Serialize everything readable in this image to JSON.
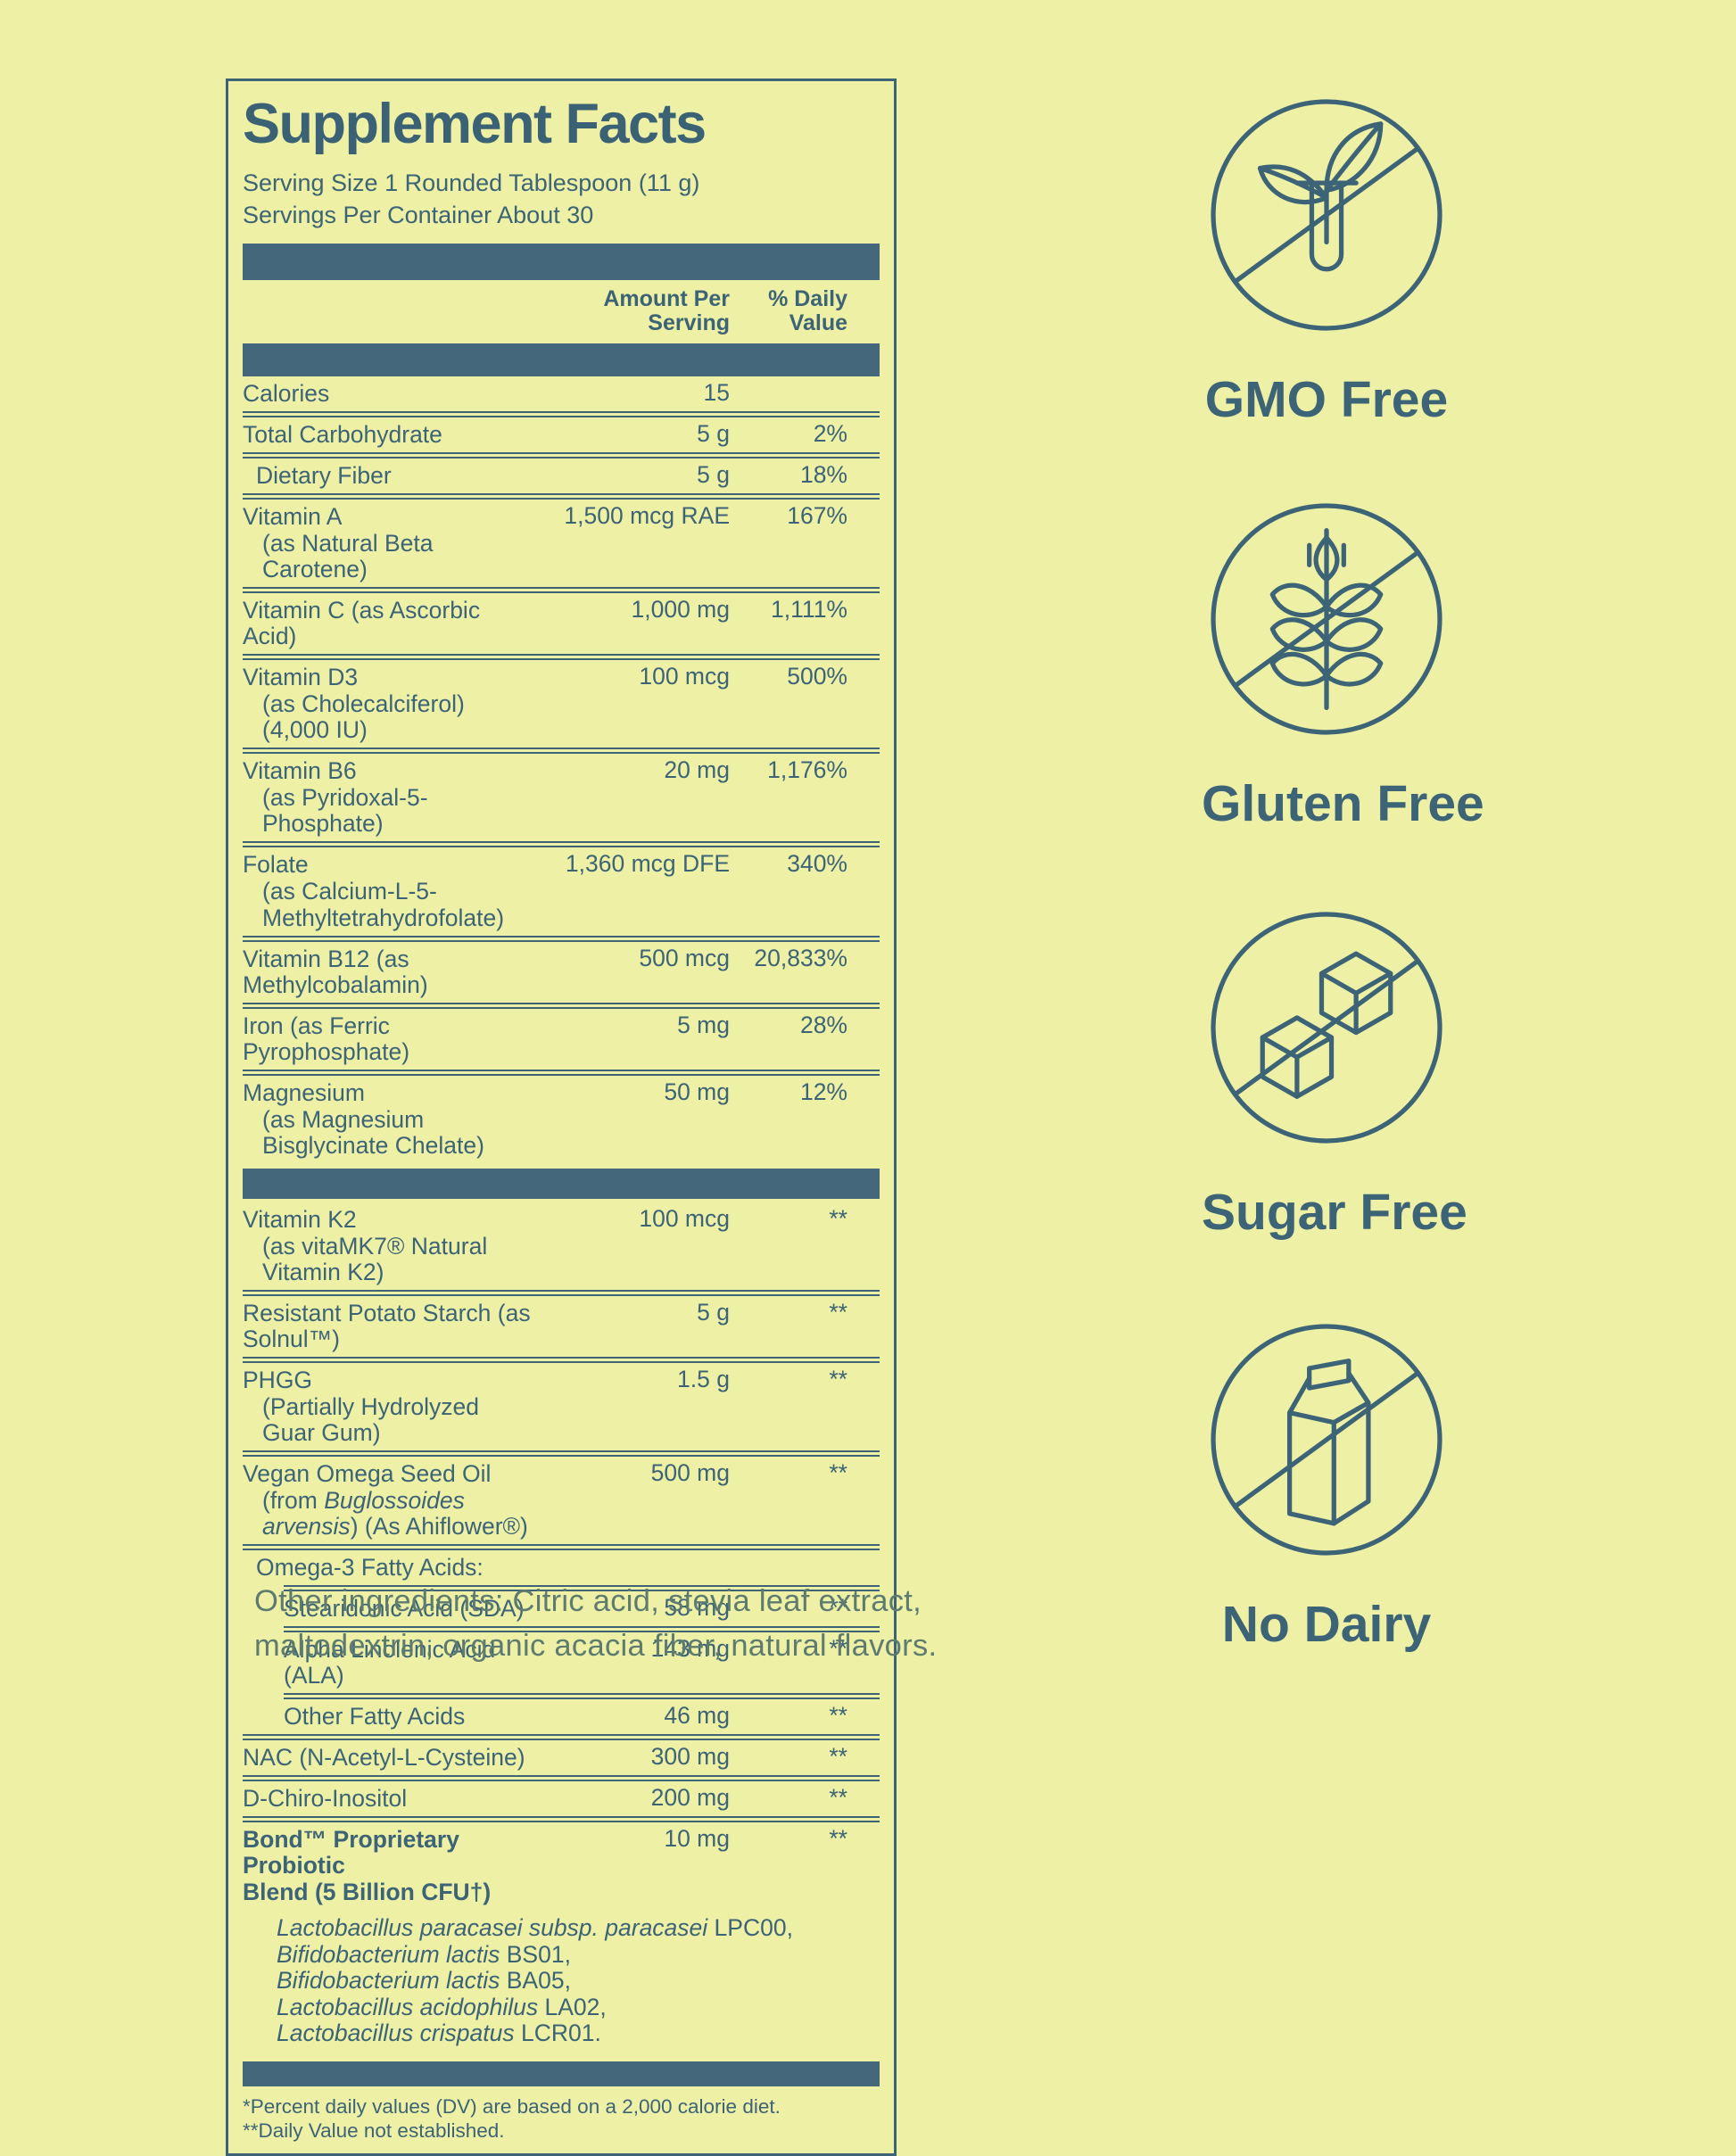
{
  "colors": {
    "background": "#edf0a5",
    "ink": "#3d6376",
    "bar": "#44677c",
    "muted_ink": "#5f7b70"
  },
  "panel": {
    "title": "Supplement Facts",
    "serving_size": "Serving Size 1 Rounded Tablespoon (11 g)",
    "servings_per_container": "Servings Per Container About 30",
    "columns": {
      "amount": [
        "Amount Per",
        "Serving"
      ],
      "dv": [
        "% Daily",
        "Value"
      ]
    },
    "rows": [
      {
        "lines": [
          {
            "seg": [
              {
                "t": "Calories"
              }
            ]
          }
        ],
        "a": "15",
        "dv": "",
        "sep": "d"
      },
      {
        "lines": [
          {
            "seg": [
              {
                "t": "Total Carbohydrate"
              }
            ]
          }
        ],
        "a": "5 g",
        "dv": "2%",
        "sep": "d"
      },
      {
        "lines": [
          {
            "seg": [
              {
                "t": "Dietary Fiber"
              }
            ]
          }
        ],
        "a": "5 g",
        "dv": "18%",
        "ind": 1,
        "sep": "d"
      },
      {
        "lines": [
          {
            "seg": [
              {
                "t": "Vitamin A"
              }
            ]
          },
          {
            "seg": [
              {
                "t": "(as Natural Beta Carotene)"
              }
            ],
            "sub": true
          }
        ],
        "a": "1,500 mcg RAE",
        "dv": "167%",
        "sep": "d"
      },
      {
        "lines": [
          {
            "seg": [
              {
                "t": "Vitamin C (as Ascorbic Acid)"
              }
            ]
          }
        ],
        "a": "1,000 mg",
        "dv": "1,111%",
        "sep": "d"
      },
      {
        "lines": [
          {
            "seg": [
              {
                "t": "Vitamin D3"
              }
            ]
          },
          {
            "seg": [
              {
                "t": "(as Cholecalciferol) (4,000 IU)"
              }
            ],
            "sub": true
          }
        ],
        "a": "100 mcg",
        "dv": "500%",
        "sep": "d"
      },
      {
        "lines": [
          {
            "seg": [
              {
                "t": "Vitamin B6"
              }
            ]
          },
          {
            "seg": [
              {
                "t": "(as Pyridoxal-5-Phosphate)"
              }
            ],
            "sub": true
          }
        ],
        "a": "20 mg",
        "dv": "1,176%",
        "sep": "d"
      },
      {
        "lines": [
          {
            "seg": [
              {
                "t": "Folate"
              }
            ]
          },
          {
            "seg": [
              {
                "t": "(as Calcium-L-5-"
              }
            ],
            "sub": true
          },
          {
            "seg": [
              {
                "t": "Methyltetrahydrofolate)"
              }
            ],
            "sub": true
          }
        ],
        "a": "1,360 mcg DFE",
        "dv": "340%",
        "sep": "d"
      },
      {
        "lines": [
          {
            "seg": [
              {
                "t": "Vitamin B12 (as Methylcobalamin)"
              }
            ]
          }
        ],
        "a": "500 mcg",
        "dv": "20,833%",
        "sep": "d"
      },
      {
        "lines": [
          {
            "seg": [
              {
                "t": "Iron (as Ferric Pyrophosphate)"
              }
            ]
          }
        ],
        "a": "5 mg",
        "dv": "28%",
        "sep": "d"
      },
      {
        "lines": [
          {
            "seg": [
              {
                "t": "Magnesium"
              }
            ]
          },
          {
            "seg": [
              {
                "t": "(as Magnesium Bisglycinate Chelate)"
              }
            ],
            "sub": true
          }
        ],
        "a": "50 mg",
        "dv": "12%",
        "sep": "n",
        "bar": true
      },
      {
        "lines": [
          {
            "seg": [
              {
                "t": "Vitamin K2"
              }
            ]
          },
          {
            "seg": [
              {
                "t": "(as vitaMK7® Natural Vitamin K2)"
              }
            ],
            "sub": true
          }
        ],
        "a": "100 mcg",
        "dv": "**",
        "sep": "d"
      },
      {
        "lines": [
          {
            "seg": [
              {
                "t": "Resistant Potato Starch (as Solnul™)"
              }
            ]
          }
        ],
        "a": "5 g",
        "dv": "**",
        "sep": "d"
      },
      {
        "lines": [
          {
            "seg": [
              {
                "t": "PHGG"
              }
            ]
          },
          {
            "seg": [
              {
                "t": "(Partially Hydrolyzed Guar Gum)"
              }
            ],
            "sub": true
          }
        ],
        "a": "1.5 g",
        "dv": "**",
        "sep": "d"
      },
      {
        "lines": [
          {
            "seg": [
              {
                "t": "Vegan Omega Seed Oil"
              }
            ]
          },
          {
            "seg": [
              {
                "t": "(from "
              },
              {
                "t": "Buglossoides arvensis",
                "i": true
              },
              {
                "t": ") (As Ahiflower®)"
              }
            ],
            "sub": true
          }
        ],
        "a": "500 mg",
        "dv": "**",
        "sep": "d"
      },
      {
        "lines": [
          {
            "seg": [
              {
                "t": "Omega-3 Fatty Acids:"
              }
            ]
          }
        ],
        "a": "",
        "dv": "",
        "ind": 1,
        "sep": "di"
      },
      {
        "lines": [
          {
            "seg": [
              {
                "t": "Stearidonic Acid (SDA)"
              }
            ]
          }
        ],
        "a": "58 mg",
        "dv": "**",
        "ind": 2,
        "sep": "di"
      },
      {
        "lines": [
          {
            "seg": [
              {
                "t": "Alpha Linolenic Acid (ALA)"
              }
            ]
          }
        ],
        "a": "143 mg",
        "dv": "**",
        "ind": 2,
        "sep": "di"
      },
      {
        "lines": [
          {
            "seg": [
              {
                "t": "Other Fatty Acids"
              }
            ]
          }
        ],
        "a": "46 mg",
        "dv": "**",
        "ind": 2,
        "sep": "d"
      },
      {
        "lines": [
          {
            "seg": [
              {
                "t": "NAC (N-Acetyl-L-Cysteine)"
              }
            ]
          }
        ],
        "a": "300 mg",
        "dv": "**",
        "sep": "d"
      },
      {
        "lines": [
          {
            "seg": [
              {
                "t": "D-Chiro-Inositol"
              }
            ]
          }
        ],
        "a": "200 mg",
        "dv": "**",
        "sep": "d"
      },
      {
        "lines": [
          {
            "seg": [
              {
                "t": "Bond™ Proprietary Probiotic"
              }
            ]
          },
          {
            "seg": [
              {
                "t": "Blend (5 Billion CFU†)"
              }
            ]
          }
        ],
        "a": "10 mg",
        "dv": "**",
        "b": true,
        "sep": "n"
      }
    ],
    "strains": [
      [
        {
          "t": "Lactobacillus paracasei subsp. paracasei",
          "i": true
        },
        {
          "t": " LPC00,"
        }
      ],
      [
        {
          "t": "Bifidobacterium lactis",
          "i": true
        },
        {
          "t": " BS01,"
        }
      ],
      [
        {
          "t": "Bifidobacterium lactis",
          "i": true
        },
        {
          "t": " BA05,"
        }
      ],
      [
        {
          "t": "Lactobacillus acidophilus",
          "i": true
        },
        {
          "t": " LA02,"
        }
      ],
      [
        {
          "t": "Lactobacillus crispatus",
          "i": true
        },
        {
          "t": " LCR01."
        }
      ]
    ],
    "footnotes": [
      "*Percent daily values (DV) are based on a 2,000 calorie diet.",
      "**Daily Value not established."
    ]
  },
  "other_ingredients": "Other ingredients: Citric acid, stevia leaf extract, maltodextrin, organic acacia fiber, natural flavors.",
  "badges": [
    {
      "label": "GMO Free",
      "icon": "gmo-free-icon"
    },
    {
      "label": "Gluten Free",
      "icon": "gluten-free-icon"
    },
    {
      "label": "Sugar Free",
      "icon": "sugar-free-icon"
    },
    {
      "label": "No Dairy",
      "icon": "no-dairy-icon"
    }
  ]
}
